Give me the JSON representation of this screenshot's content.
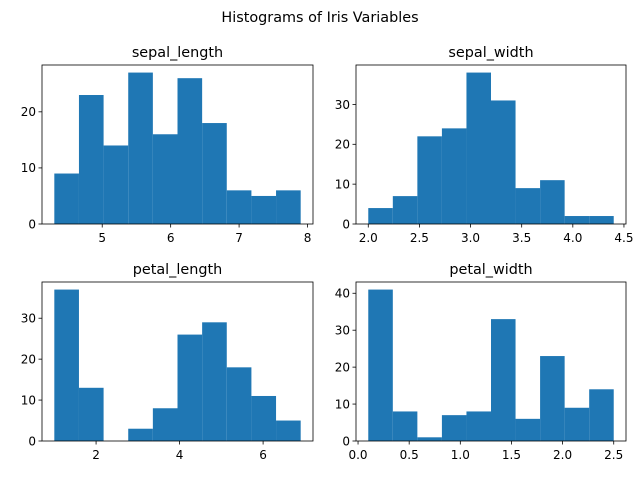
{
  "figure": {
    "title": "Histograms of Iris Variables",
    "bar_color": "#1f77b4",
    "axis_color": "#000000"
  },
  "chart_data": [
    {
      "type": "bar",
      "subtype": "histogram",
      "title": "sepal_length",
      "xlabel": "",
      "ylabel": "",
      "bin_edges": [
        4.3,
        4.66,
        5.02,
        5.38,
        5.74,
        6.1,
        6.46,
        6.82,
        7.18,
        7.54,
        7.9
      ],
      "values": [
        9,
        23,
        14,
        27,
        16,
        26,
        18,
        6,
        5,
        6
      ],
      "xlim": [
        4.12,
        8.08
      ],
      "ylim": [
        0,
        28.35
      ],
      "xticks": [
        5,
        6,
        7,
        8
      ],
      "yticks": [
        0,
        10,
        20
      ],
      "grid": false
    },
    {
      "type": "bar",
      "subtype": "histogram",
      "title": "sepal_width",
      "xlabel": "",
      "ylabel": "",
      "bin_edges": [
        2.0,
        2.24,
        2.48,
        2.72,
        2.96,
        3.2,
        3.44,
        3.68,
        3.92,
        4.16,
        4.4
      ],
      "values": [
        4,
        7,
        22,
        24,
        38,
        31,
        9,
        11,
        2,
        2
      ],
      "xlim": [
        1.88,
        4.52
      ],
      "ylim": [
        0,
        39.9
      ],
      "xticks": [
        2.0,
        2.5,
        3.0,
        3.5,
        4.0,
        4.5
      ],
      "yticks": [
        0,
        10,
        20,
        30
      ],
      "grid": false
    },
    {
      "type": "bar",
      "subtype": "histogram",
      "title": "petal_length",
      "xlabel": "",
      "ylabel": "",
      "bin_edges": [
        1.0,
        1.59,
        2.18,
        2.77,
        3.36,
        3.95,
        4.54,
        5.13,
        5.72,
        6.31,
        6.9
      ],
      "values": [
        37,
        13,
        0,
        3,
        8,
        26,
        29,
        18,
        11,
        5
      ],
      "xlim": [
        0.705,
        7.195
      ],
      "ylim": [
        0,
        38.85
      ],
      "xticks": [
        2,
        4,
        6
      ],
      "yticks": [
        0,
        10,
        20,
        30
      ],
      "grid": false
    },
    {
      "type": "bar",
      "subtype": "histogram",
      "title": "petal_width",
      "xlabel": "",
      "ylabel": "",
      "bin_edges": [
        0.1,
        0.34,
        0.58,
        0.82,
        1.06,
        1.3,
        1.54,
        1.78,
        2.02,
        2.26,
        2.5
      ],
      "values": [
        41,
        8,
        1,
        7,
        8,
        33,
        6,
        23,
        9,
        14
      ],
      "xlim": [
        -0.02,
        2.62
      ],
      "ylim": [
        0,
        43.05
      ],
      "xticks": [
        0.0,
        0.5,
        1.0,
        1.5,
        2.0,
        2.5
      ],
      "yticks": [
        0,
        10,
        20,
        30,
        40
      ],
      "grid": false
    }
  ]
}
